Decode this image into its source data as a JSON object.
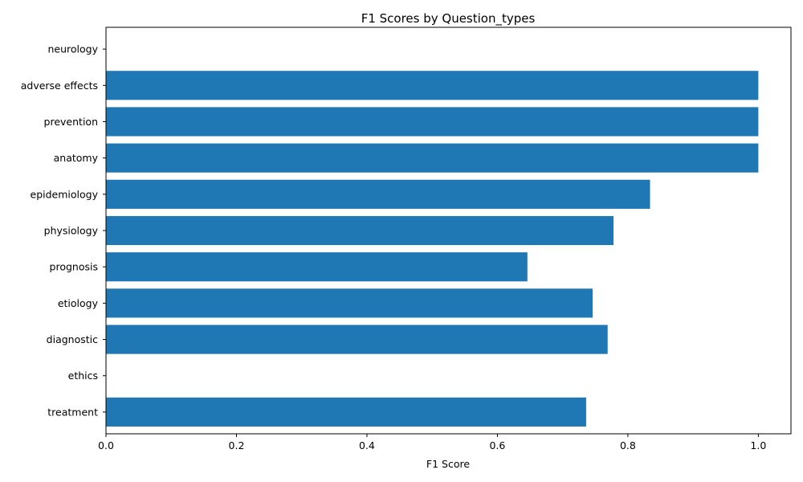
{
  "chart_data": {
    "type": "bar",
    "orientation": "horizontal",
    "title": "F1 Scores by Question_types",
    "xlabel": "F1 Score",
    "ylabel": "",
    "xlim": [
      0,
      1.05
    ],
    "x_ticks": [
      "0.0",
      "0.2",
      "0.4",
      "0.6",
      "0.8",
      "1.0"
    ],
    "x_tick_values": [
      0,
      0.2,
      0.4,
      0.6,
      0.8,
      1.0
    ],
    "grid": false,
    "bar_color": "#1f77b4",
    "categories": [
      "neurology",
      "adverse effects",
      "prevention",
      "anatomy",
      "epidemiology",
      "physiology",
      "prognosis",
      "etiology",
      "diagnostic",
      "ethics",
      "treatment"
    ],
    "values": [
      0.0,
      1.0,
      1.0,
      1.0,
      0.834,
      0.778,
      0.646,
      0.746,
      0.769,
      0.0,
      0.736
    ]
  }
}
